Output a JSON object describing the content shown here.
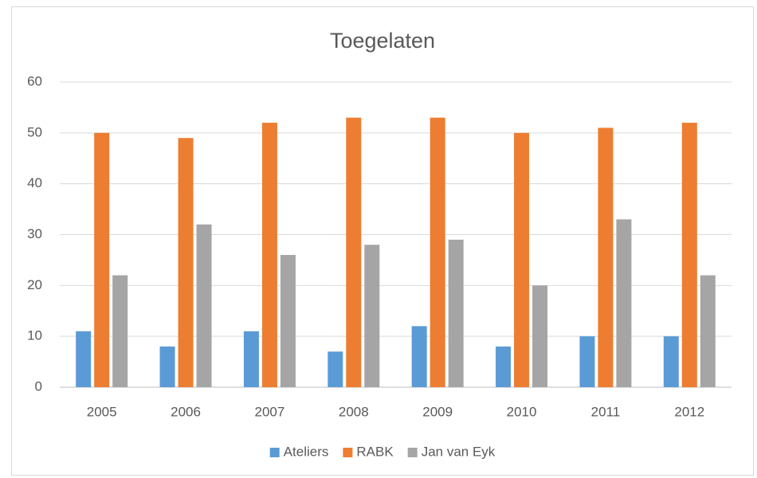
{
  "chart_data": {
    "type": "bar",
    "title": "Toegelaten",
    "categories": [
      "2005",
      "2006",
      "2007",
      "2008",
      "2009",
      "2010",
      "2011",
      "2012"
    ],
    "series": [
      {
        "name": "Ateliers",
        "color": "#5b9bd5",
        "values": [
          11,
          8,
          11,
          7,
          12,
          8,
          10,
          10
        ]
      },
      {
        "name": "RABK",
        "color": "#ed7d31",
        "values": [
          50,
          49,
          52,
          53,
          53,
          50,
          51,
          52
        ]
      },
      {
        "name": "Jan van Eyk",
        "color": "#a5a5a5",
        "values": [
          22,
          32,
          26,
          28,
          29,
          20,
          33,
          22
        ]
      }
    ],
    "ylim": [
      0,
      60
    ],
    "yticks": [
      0,
      10,
      20,
      30,
      40,
      50,
      60
    ],
    "grid": true,
    "legend": "bottom"
  }
}
